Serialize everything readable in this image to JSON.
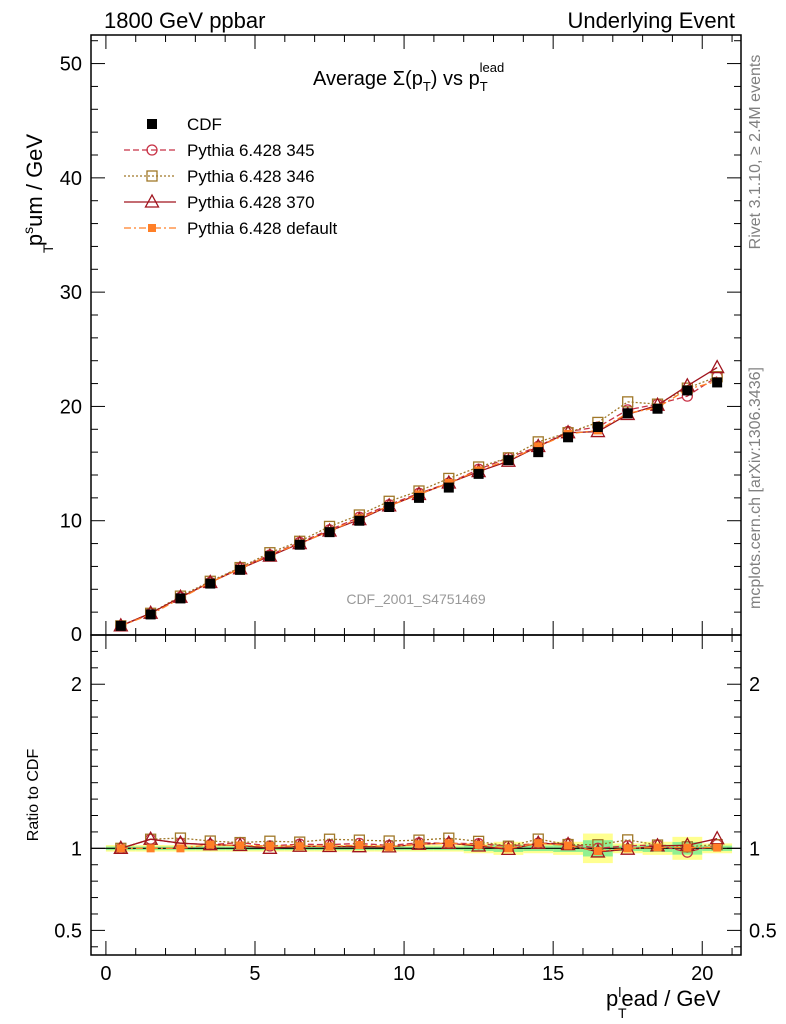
{
  "header": {
    "left": "1800 GeV ppbar",
    "right": "Underlying Event"
  },
  "side": {
    "rivet": "Rivet 3.1.10, ≥ 2.4M events",
    "mcplots": "mcplots.cern.ch [arXiv:1306.3436]"
  },
  "labels": {
    "title_main": "Average Σ(p",
    "title_sub_t": "T",
    "title_mid": ") vs p",
    "title_sup": "lead",
    "ylabel_p": "p",
    "ylabel_sup": "s",
    "ylabel_sub": "T",
    "ylabel_rest": "um / GeV",
    "xlabel_p": "p",
    "xlabel_sup": "l",
    "xlabel_sub": "T",
    "xlabel_rest": "ead / GeV",
    "ratio_ylabel": "Ratio to CDF",
    "watermark": "CDF_2001_S4751469"
  },
  "legend": [
    {
      "name": "CDF",
      "color": "#000000",
      "marker": "square-filled",
      "line": "none"
    },
    {
      "name": "Pythia 6.428 345",
      "color": "#c83246",
      "marker": "circle-open",
      "line": "dashed"
    },
    {
      "name": "Pythia 6.428 346",
      "color": "#a07828",
      "marker": "square-open",
      "line": "dotted"
    },
    {
      "name": "Pythia 6.428 370",
      "color": "#a0141e",
      "marker": "triangle-open",
      "line": "solid"
    },
    {
      "name": "Pythia 6.428 default",
      "color": "#ff7f27",
      "marker": "square-filled-small",
      "line": "dashdot"
    }
  ],
  "chart_data": {
    "type": "line",
    "x": [
      0.5,
      1.5,
      2.5,
      3.5,
      4.5,
      5.5,
      6.5,
      7.5,
      8.5,
      9.5,
      10.5,
      11.5,
      12.5,
      13.5,
      14.5,
      15.5,
      16.5,
      17.5,
      18.5,
      19.5,
      20.5
    ],
    "main": {
      "xlim": [
        -0.5,
        21.3
      ],
      "ylim": [
        0,
        52.5
      ],
      "yticks": [
        0,
        10,
        20,
        30,
        40,
        50
      ],
      "xticks": [
        0,
        5,
        10,
        15,
        20
      ]
    },
    "ratio": {
      "ylim": [
        0.35,
        2.3
      ],
      "yticks": [
        0.5,
        1,
        2
      ],
      "ytick_labels": [
        "0.5",
        "1",
        "2"
      ],
      "band_rel_err": [
        0.02,
        0.02,
        0.02,
        0.02,
        0.02,
        0.02,
        0.02,
        0.02,
        0.02,
        0.02,
        0.02,
        0.02,
        0.03,
        0.04,
        0.03,
        0.04,
        0.09,
        0.03,
        0.04,
        0.07,
        0.03
      ]
    },
    "series": [
      {
        "name": "CDF",
        "values": [
          0.8,
          1.8,
          3.2,
          4.5,
          5.7,
          6.9,
          7.9,
          9.0,
          10.0,
          11.2,
          12.0,
          12.9,
          14.1,
          15.3,
          16.0,
          17.3,
          18.2,
          19.4,
          19.8,
          21.4,
          22.1
        ]
      },
      {
        "name": "Pythia 6.428 345",
        "values": [
          0.8,
          1.9,
          3.3,
          4.6,
          5.9,
          7.0,
          8.1,
          9.2,
          10.3,
          11.4,
          12.4,
          13.3,
          14.5,
          15.5,
          16.5,
          17.8,
          18.2,
          19.7,
          20.2,
          20.9,
          22.6
        ]
      },
      {
        "name": "Pythia 6.428 346",
        "values": [
          0.8,
          1.9,
          3.4,
          4.7,
          5.9,
          7.2,
          8.2,
          9.5,
          10.5,
          11.7,
          12.6,
          13.7,
          14.7,
          15.5,
          16.9,
          17.7,
          18.6,
          20.4,
          20.2,
          21.6,
          22.6
        ]
      },
      {
        "name": "Pythia 6.428 370",
        "values": [
          0.8,
          1.9,
          3.3,
          4.6,
          5.8,
          6.9,
          8.0,
          9.1,
          10.1,
          11.3,
          12.3,
          13.3,
          14.3,
          15.2,
          16.5,
          17.7,
          17.8,
          19.3,
          20.1,
          21.8,
          23.4
        ]
      },
      {
        "name": "Pythia 6.428 default",
        "values": [
          0.8,
          1.8,
          3.2,
          4.6,
          5.8,
          7.0,
          8.0,
          9.1,
          10.2,
          11.3,
          12.3,
          13.3,
          14.4,
          15.3,
          16.5,
          17.6,
          17.9,
          19.4,
          19.9,
          21.5,
          22.2
        ]
      }
    ]
  }
}
